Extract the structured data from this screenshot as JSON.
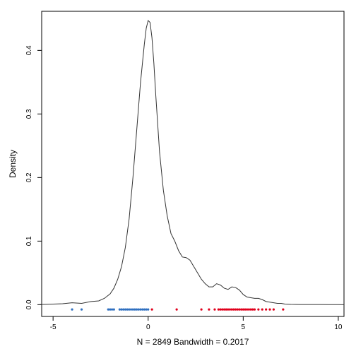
{
  "chart_data": {
    "type": "line",
    "title": "",
    "xlabel": "N = 2849   Bandwidth = 0.2017",
    "ylabel": "Density",
    "xlim": [
      -5.6,
      10.3
    ],
    "ylim": [
      -0.0185,
      0.4615
    ],
    "x_ticks": [
      -5,
      0,
      5,
      10
    ],
    "y_ticks": [
      0.0,
      0.1,
      0.2,
      0.3,
      0.4
    ],
    "x_tick_labels": [
      "-5",
      "0",
      "5",
      "10"
    ],
    "y_tick_labels": [
      "0.0",
      "0.1",
      "0.2",
      "0.3",
      "0.4"
    ],
    "grid": false,
    "series": [
      {
        "color": "#333333",
        "x": [
          -5.7,
          -5.0,
          -4.5,
          -4.0,
          -3.5,
          -3.0,
          -2.6,
          -2.3,
          -2.0,
          -1.8,
          -1.6,
          -1.4,
          -1.2,
          -1.0,
          -0.8,
          -0.6,
          -0.4,
          -0.2,
          -0.1,
          0.0,
          0.1,
          0.2,
          0.3,
          0.4,
          0.6,
          0.8,
          1.0,
          1.2,
          1.4,
          1.6,
          1.8,
          2.0,
          2.2,
          2.4,
          2.6,
          2.8,
          3.0,
          3.2,
          3.4,
          3.6,
          3.8,
          4.0,
          4.2,
          4.4,
          4.6,
          4.8,
          5.0,
          5.2,
          5.4,
          5.6,
          5.8,
          6.0,
          6.2,
          6.4,
          6.6,
          6.8,
          7.0,
          7.2,
          7.5,
          8.0,
          8.5,
          9.0,
          9.5,
          10.0,
          10.3
        ],
        "y": [
          0.0002,
          0.001,
          0.0015,
          0.003,
          0.002,
          0.005,
          0.006,
          0.01,
          0.017,
          0.026,
          0.04,
          0.06,
          0.09,
          0.135,
          0.2,
          0.275,
          0.35,
          0.41,
          0.435,
          0.447,
          0.444,
          0.42,
          0.38,
          0.33,
          0.24,
          0.18,
          0.14,
          0.112,
          0.1,
          0.085,
          0.075,
          0.074,
          0.07,
          0.06,
          0.05,
          0.04,
          0.033,
          0.028,
          0.028,
          0.033,
          0.031,
          0.026,
          0.024,
          0.028,
          0.027,
          0.023,
          0.016,
          0.012,
          0.011,
          0.01,
          0.01,
          0.008,
          0.005,
          0.004,
          0.003,
          0.002,
          0.002,
          0.001,
          0.0005,
          0.0003,
          0.0002,
          0.0002,
          0.0001,
          0.0001,
          0.0
        ]
      }
    ],
    "rug": [
      {
        "color": "#3070c0",
        "x": [
          -4.0,
          -3.5,
          -2.1,
          -2.0,
          -1.9,
          -1.8,
          -1.5,
          -1.4,
          -1.3,
          -1.2,
          -1.1,
          -1.0,
          -0.9,
          -0.8,
          -0.7,
          -0.6,
          -0.5,
          -0.4,
          -0.3,
          -0.2,
          -0.1,
          0.0
        ]
      },
      {
        "color": "#e0001c",
        "x": [
          0.2,
          1.5,
          2.8,
          3.2,
          3.5,
          3.7,
          3.8,
          3.9,
          4.0,
          4.1,
          4.2,
          4.3,
          4.4,
          4.5,
          4.6,
          4.7,
          4.8,
          4.9,
          5.0,
          5.1,
          5.2,
          5.3,
          5.4,
          5.5,
          5.6,
          5.8,
          6.0,
          6.2,
          6.4,
          6.6,
          7.1
        ]
      }
    ]
  }
}
